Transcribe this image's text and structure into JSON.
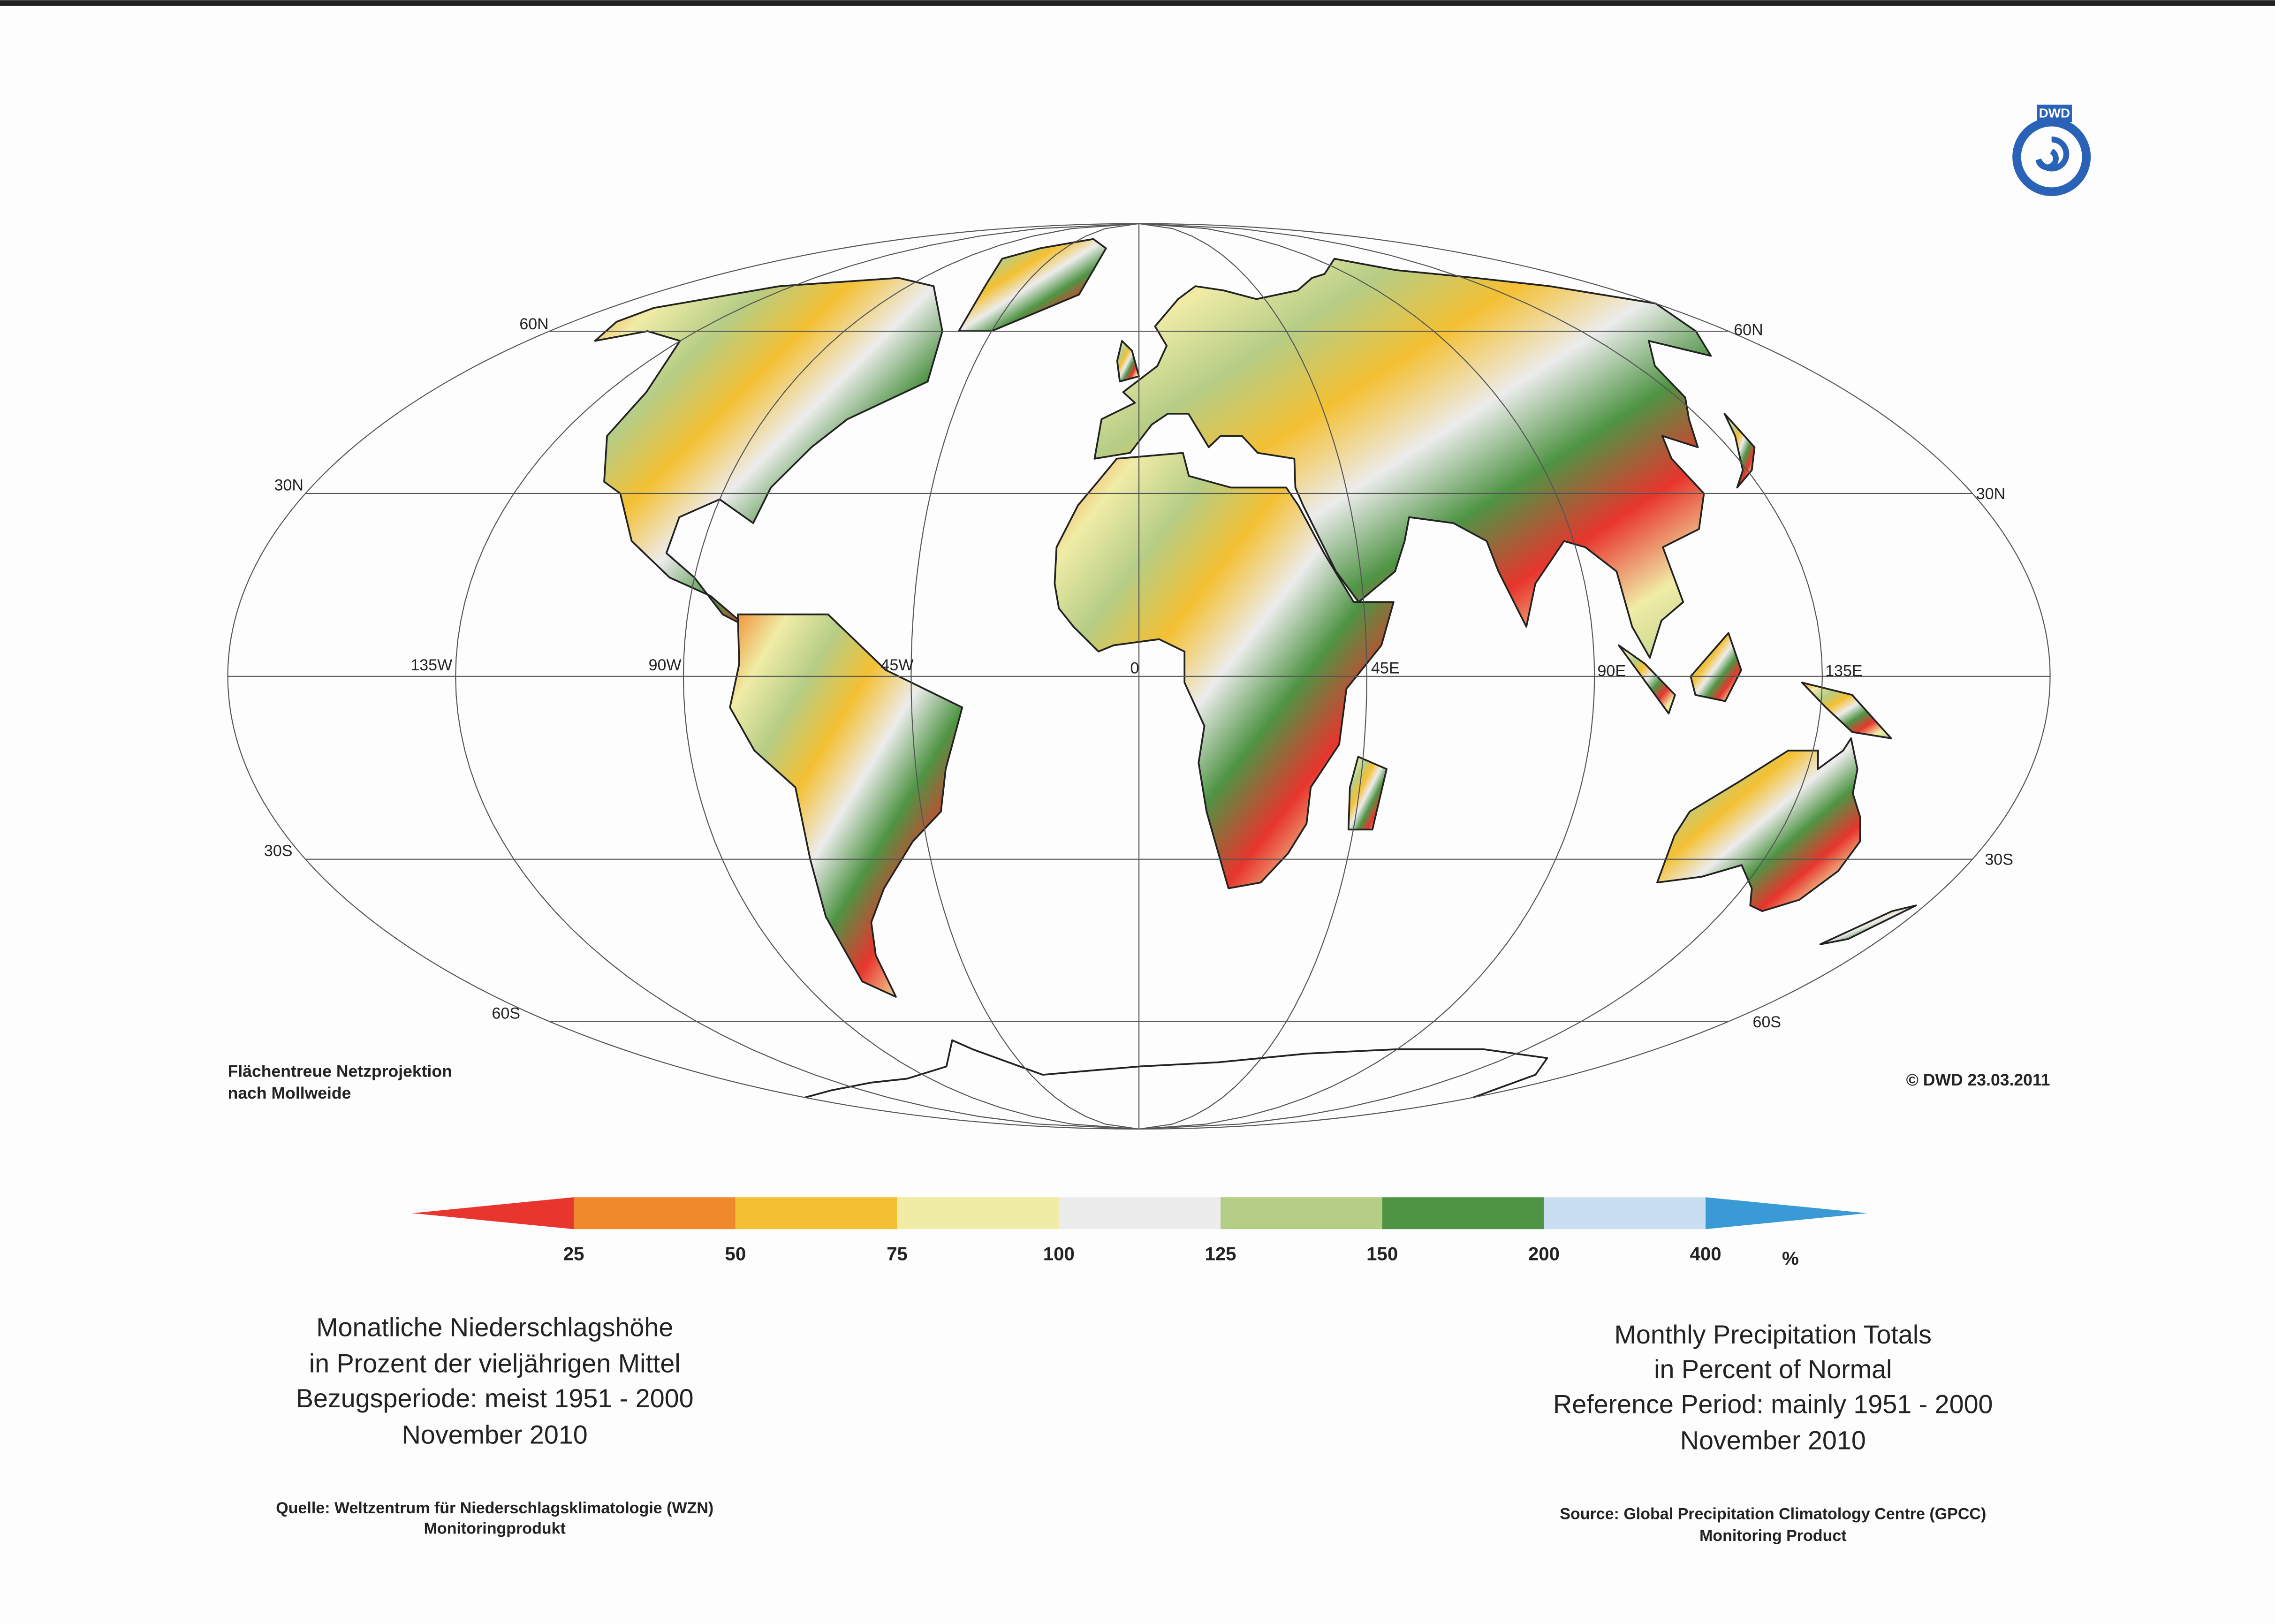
{
  "map": {
    "graticule_labels": [
      "60N",
      "60N",
      "30N",
      "30N",
      "135W",
      "90W",
      "45W",
      "0",
      "45E",
      "90E",
      "135E",
      "30S",
      "30S",
      "60S",
      "60S"
    ]
  },
  "legend": {
    "colors": [
      "#e8352d",
      "#ef8a2c",
      "#f4c033",
      "#f0eca6",
      "#ececec",
      "#b6cd86",
      "#4f9444",
      "#c9def0",
      "#3a9ad6"
    ],
    "ticks": [
      25,
      50,
      75,
      100,
      125,
      150,
      200,
      400
    ],
    "unit": "%"
  },
  "title_de": [
    "Monatliche Niederschlagshöhe",
    "in Prozent der vieljährigen Mittel",
    "Bezugsperiode: meist 1951 - 2000",
    "November 2010"
  ],
  "title_en": [
    "Monthly Precipitation Totals",
    "in Percent of Normal",
    "Reference Period: mainly 1951 - 2000",
    "November 2010"
  ],
  "source_de": [
    "Quelle: Weltzentrum für Niederschlagsklimatologie (WZN)",
    "Monitoringprodukt"
  ],
  "source_en": [
    "Source: Global Precipitation Climatology Centre (GPCC)",
    "Monitoring Product"
  ],
  "projection_note": [
    "Flächentreue Netzprojektion",
    "nach Mollweide"
  ],
  "copyright": "© DWD 23.03.2011",
  "logo": "DWD"
}
